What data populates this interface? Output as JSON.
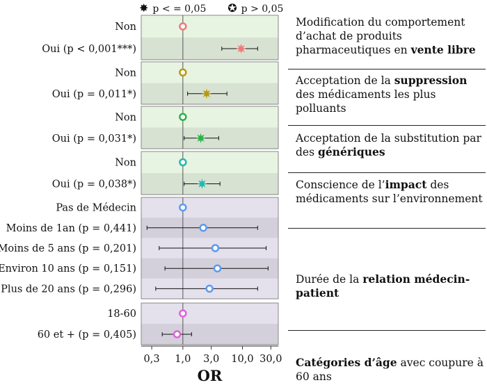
{
  "legend": {
    "sig_label": "p < = 0,05",
    "nonsig_label": "p > 0,05"
  },
  "axis_title": "OR",
  "chart_data": {
    "type": "forest",
    "xlabel": "OR",
    "xscale": "log",
    "xlim": [
      0.2,
      40
    ],
    "xticks": [
      "0,3",
      "1,0",
      "3,0",
      "10,0",
      "30,0"
    ],
    "xtick_values": [
      0.3,
      1.0,
      3.0,
      10.0,
      30.0
    ],
    "reference_line": 1.0,
    "groups": [
      {
        "key": "vente_libre",
        "bg": "#e8f4e2",
        "color": "#f07a7a",
        "rows": [
          {
            "label": "Non",
            "or": 1.0,
            "lo": null,
            "hi": null,
            "sig": false
          },
          {
            "label": "Oui (p < 0,001***)",
            "or": 9.5,
            "lo": 4.5,
            "hi": 18.0,
            "sig": true
          }
        ]
      },
      {
        "key": "suppression",
        "bg": "#e8f4e2",
        "color": "#b89a10",
        "rows": [
          {
            "label": "Non",
            "or": 1.0,
            "lo": null,
            "hi": null,
            "sig": false
          },
          {
            "label": "Oui (p = 0,011*)",
            "or": 2.5,
            "lo": 1.2,
            "hi": 5.5,
            "sig": true
          }
        ]
      },
      {
        "key": "generiques",
        "bg": "#e8f4e2",
        "color": "#2cb34a",
        "rows": [
          {
            "label": "Non",
            "or": 1.0,
            "lo": null,
            "hi": null,
            "sig": false
          },
          {
            "label": "Oui (p = 0,031*)",
            "or": 2.0,
            "lo": 1.05,
            "hi": 4.0,
            "sig": true
          }
        ]
      },
      {
        "key": "impact",
        "bg": "#e8f4e2",
        "color": "#23b8b0",
        "rows": [
          {
            "label": "Non",
            "or": 1.0,
            "lo": null,
            "hi": null,
            "sig": false
          },
          {
            "label": "Oui (p = 0,038*)",
            "or": 2.1,
            "lo": 1.05,
            "hi": 4.2,
            "sig": true
          }
        ]
      },
      {
        "key": "medecin",
        "bg": "#e4e0ec",
        "color": "#5b9af0",
        "rows": [
          {
            "label": "Pas de Médecin",
            "or": 1.0,
            "lo": null,
            "hi": null,
            "sig": false
          },
          {
            "label": "Moins de 1an (p = 0,441)",
            "or": 2.2,
            "lo": 0.25,
            "hi": 18.0,
            "sig": false
          },
          {
            "label": "Moins de 5 ans (p = 0,201)",
            "or": 3.5,
            "lo": 0.4,
            "hi": 25.0,
            "sig": false
          },
          {
            "label": "Environ 10 ans (p = 0,151)",
            "or": 3.8,
            "lo": 0.5,
            "hi": 27.0,
            "sig": false
          },
          {
            "label": "Plus de 20 ans (p = 0,296)",
            "or": 2.8,
            "lo": 0.35,
            "hi": 18.0,
            "sig": false
          }
        ]
      },
      {
        "key": "age",
        "bg": "#e4e0ec",
        "color": "#e060e0",
        "rows": [
          {
            "label": "18-60",
            "or": 1.0,
            "lo": null,
            "hi": null,
            "sig": false
          },
          {
            "label": "60 et + (p = 0,405)",
            "or": 0.8,
            "lo": 0.45,
            "hi": 1.4,
            "sig": false
          }
        ]
      }
    ]
  },
  "descriptions": [
    {
      "pre": "Modification du comportement d’achat de produits pharmaceutiques en ",
      "bold": "vente libre",
      "post": ""
    },
    {
      "pre": "Acceptation de la ",
      "bold": "suppression",
      "post": " des médicaments les plus polluants"
    },
    {
      "pre": "Acceptation de la substitution par des ",
      "bold": "génériques",
      "post": ""
    },
    {
      "pre": "Conscience de l’",
      "bold": "impact",
      "post": " des médicaments sur l’environnement"
    },
    {
      "pre": "Durée de la ",
      "bold": "relation médecin-patient",
      "post": ""
    },
    {
      "pre": "",
      "bold": "Catégories d’âge",
      "post": " avec coupure à 60 ans"
    }
  ]
}
